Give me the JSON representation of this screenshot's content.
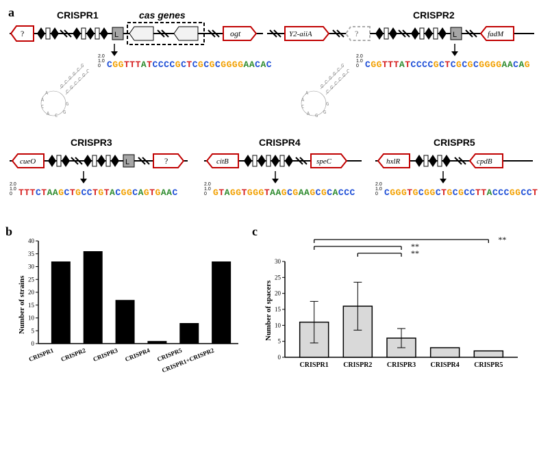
{
  "panel_a": {
    "label": "a",
    "loci": {
      "CRISPR1": {
        "title": "CRISPR1",
        "flank_left": "?",
        "flank_right": "ogt",
        "has_leader": true,
        "cas_label": "cas genes",
        "consensus": "CGGTTTATCCCCGCTCGCGCGGGGAACAC"
      },
      "CRISPR2": {
        "title": "CRISPR2",
        "flank_left": "Y2-aiiA",
        "flank_left2": "?",
        "flank_right": "fadM",
        "has_leader": true,
        "consensus": "CGGTTTATCCCCGCTCGCGCGGGGAACAG"
      },
      "CRISPR3": {
        "title": "CRISPR3",
        "flank_left": "cueO",
        "flank_right": "?",
        "has_leader": true,
        "consensus": "TTTCTAAGCTGCCTGTACGGCAGTGAAC"
      },
      "CRISPR4": {
        "title": "CRISPR4",
        "flank_left": "citB",
        "flank_right": "speC",
        "has_leader": false,
        "consensus": "GTAGGTGGGTAAGCGAAGCGCACCC"
      },
      "CRISPR5": {
        "title": "CRISPR5",
        "flank_left": "hxlR",
        "flank_right": "cpdB",
        "has_leader": false,
        "consensus": "CGGGTGCGGCTGCGCCTTACCCGGCCT"
      }
    }
  },
  "panel_b": {
    "label": "b",
    "ylabel": "Number of strains",
    "ymax": 40,
    "ytick_step": 5,
    "categories": [
      "CRISPR1",
      "CRISPR2",
      "CRISPR3",
      "CRISPR4",
      "CRISPR5",
      "CRISPR1+CRISPR2"
    ],
    "values": [
      32,
      36,
      17,
      1,
      8,
      32
    ],
    "bar_color": "#000000",
    "background": "#ffffff"
  },
  "panel_c": {
    "label": "c",
    "ylabel": "Number of spacers",
    "ymax": 30,
    "ytick_step": 5,
    "categories": [
      "CRISPR1",
      "CRISPR2",
      "CRISPR3",
      "CRISPR4",
      "CRISPR5"
    ],
    "means": [
      11,
      16,
      6,
      3,
      2
    ],
    "err": [
      6.5,
      7.5,
      3,
      0,
      0
    ],
    "bar_color": "#d9d9d9",
    "bar_border": "#000000",
    "sig_marks": [
      "**",
      "**",
      "**"
    ]
  },
  "colors": {
    "gene_outline": "#c00000",
    "gene_fill_open": "#ffffff",
    "repeat_fill": "#000000",
    "spacer_fill": "#ffffff",
    "leader_fill": "#a6a6a6",
    "axis": "#000000"
  }
}
